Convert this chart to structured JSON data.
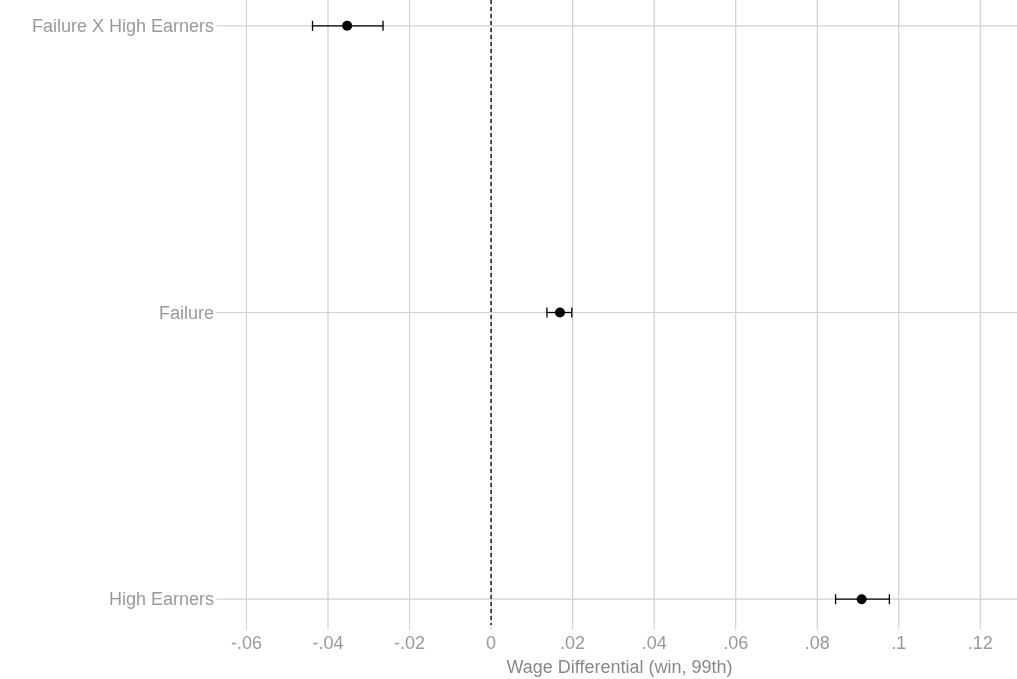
{
  "chart_data": {
    "type": "scatter",
    "orientation": "horizontal",
    "xlabel": "Wage Differential (win, 99th)",
    "categories": [
      "Failure X High Earners",
      "Failure",
      "High Earners"
    ],
    "values": [
      -0.0353,
      0.0169,
      0.0909
    ],
    "errors": [
      [
        -0.0438,
        -0.0265
      ],
      [
        0.0137,
        0.0198
      ],
      [
        0.0845,
        0.0977
      ]
    ],
    "color": "#000000",
    "marker": "circle",
    "grid": true,
    "xlim": [
      -0.066,
      0.129
    ],
    "xticks": [
      {
        "value": -0.06,
        "label": "-.06"
      },
      {
        "value": -0.04,
        "label": "-.04"
      },
      {
        "value": -0.02,
        "label": "-.02"
      },
      0,
      {
        "value": 0.02,
        "label": ".02"
      },
      {
        "value": 0.04,
        "label": ".04"
      },
      {
        "value": 0.06,
        "label": ".06"
      },
      {
        "value": 0.08,
        "label": ".08"
      },
      {
        "value": 0.1,
        "label": ".1"
      },
      {
        "value": 0.12,
        "label": ".12"
      }
    ],
    "ref_lines": [
      {
        "axis": "x",
        "value": 0,
        "line_style": "dashed",
        "color": "#000000"
      }
    ]
  }
}
